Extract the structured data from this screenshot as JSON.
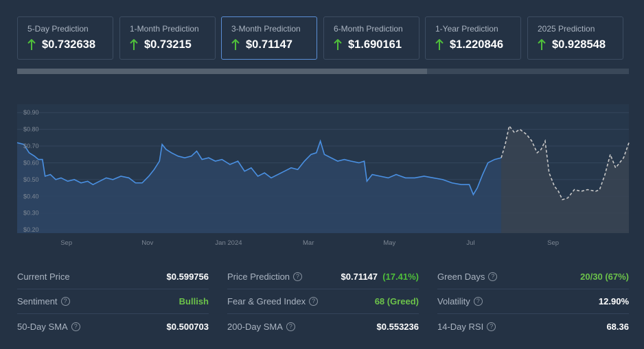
{
  "predictions": [
    {
      "label": "5-Day Prediction",
      "value": "$0.732638",
      "active": false
    },
    {
      "label": "1-Month Prediction",
      "value": "$0.73215",
      "active": false
    },
    {
      "label": "3-Month Prediction",
      "value": "$0.71147",
      "active": true
    },
    {
      "label": "6-Month Prediction",
      "value": "$1.690161",
      "active": false
    },
    {
      "label": "1-Year Prediction",
      "value": "$1.220846",
      "active": false
    },
    {
      "label": "2025 Prediction",
      "value": "$0.928548",
      "active": false
    }
  ],
  "range_slider": {
    "fill_fraction": 0.67
  },
  "colors": {
    "background": "#243244",
    "price_line": "#4a90e2",
    "price_fill": "#2e4564",
    "prediction_line": "#c8c8c8",
    "prediction_fill": "#3a4452",
    "up_arrow": "#4fbf3a",
    "positive": "#6cc24a"
  },
  "chart_data": {
    "type": "line",
    "y_ticks": [
      "$0.90",
      "$0.80",
      "$0.70",
      "$0.60",
      "$0.50",
      "$0.40",
      "$0.30",
      "$0.20"
    ],
    "ylim": [
      0.18,
      0.95
    ],
    "x_ticks": [
      {
        "label": "Sep",
        "date": "2023-09-01"
      },
      {
        "label": "Nov",
        "date": "2023-11-01"
      },
      {
        "label": "Jan 2024",
        "date": "2024-01-01"
      },
      {
        "label": "Mar",
        "date": "2024-03-01"
      },
      {
        "label": "May",
        "date": "2024-05-01"
      },
      {
        "label": "Jul",
        "date": "2024-07-01"
      },
      {
        "label": "Sep",
        "date": "2024-09-01"
      }
    ],
    "xlim": [
      "2023-07-26",
      "2024-10-28"
    ],
    "grid": true,
    "series": [
      {
        "role": "historical",
        "points": [
          [
            "2023-07-26",
            0.72
          ],
          [
            "2023-07-31",
            0.71
          ],
          [
            "2023-08-04",
            0.66
          ],
          [
            "2023-08-08",
            0.64
          ],
          [
            "2023-08-11",
            0.62
          ],
          [
            "2023-08-14",
            0.62
          ],
          [
            "2023-08-16",
            0.52
          ],
          [
            "2023-08-20",
            0.53
          ],
          [
            "2023-08-24",
            0.5
          ],
          [
            "2023-08-28",
            0.51
          ],
          [
            "2023-09-02",
            0.49
          ],
          [
            "2023-09-07",
            0.5
          ],
          [
            "2023-09-12",
            0.48
          ],
          [
            "2023-09-17",
            0.49
          ],
          [
            "2023-09-21",
            0.47
          ],
          [
            "2023-09-26",
            0.49
          ],
          [
            "2023-10-01",
            0.51
          ],
          [
            "2023-10-06",
            0.5
          ],
          [
            "2023-10-12",
            0.52
          ],
          [
            "2023-10-18",
            0.51
          ],
          [
            "2023-10-23",
            0.48
          ],
          [
            "2023-10-28",
            0.48
          ],
          [
            "2023-11-02",
            0.52
          ],
          [
            "2023-11-06",
            0.56
          ],
          [
            "2023-11-10",
            0.61
          ],
          [
            "2023-11-12",
            0.71
          ],
          [
            "2023-11-15",
            0.68
          ],
          [
            "2023-11-19",
            0.66
          ],
          [
            "2023-11-24",
            0.64
          ],
          [
            "2023-11-29",
            0.63
          ],
          [
            "2023-12-04",
            0.64
          ],
          [
            "2023-12-08",
            0.67
          ],
          [
            "2023-12-12",
            0.62
          ],
          [
            "2023-12-17",
            0.63
          ],
          [
            "2023-12-22",
            0.61
          ],
          [
            "2023-12-27",
            0.62
          ],
          [
            "2024-01-02",
            0.59
          ],
          [
            "2024-01-08",
            0.61
          ],
          [
            "2024-01-13",
            0.55
          ],
          [
            "2024-01-18",
            0.57
          ],
          [
            "2024-01-23",
            0.52
          ],
          [
            "2024-01-28",
            0.54
          ],
          [
            "2024-02-02",
            0.51
          ],
          [
            "2024-02-07",
            0.53
          ],
          [
            "2024-02-12",
            0.55
          ],
          [
            "2024-02-17",
            0.57
          ],
          [
            "2024-02-22",
            0.56
          ],
          [
            "2024-02-27",
            0.61
          ],
          [
            "2024-03-03",
            0.65
          ],
          [
            "2024-03-07",
            0.66
          ],
          [
            "2024-03-10",
            0.73
          ],
          [
            "2024-03-13",
            0.65
          ],
          [
            "2024-03-18",
            0.63
          ],
          [
            "2024-03-23",
            0.61
          ],
          [
            "2024-03-28",
            0.62
          ],
          [
            "2024-04-02",
            0.61
          ],
          [
            "2024-04-08",
            0.6
          ],
          [
            "2024-04-12",
            0.61
          ],
          [
            "2024-04-14",
            0.49
          ],
          [
            "2024-04-18",
            0.53
          ],
          [
            "2024-04-24",
            0.52
          ],
          [
            "2024-04-30",
            0.51
          ],
          [
            "2024-05-06",
            0.53
          ],
          [
            "2024-05-13",
            0.51
          ],
          [
            "2024-05-20",
            0.51
          ],
          [
            "2024-05-27",
            0.52
          ],
          [
            "2024-06-03",
            0.51
          ],
          [
            "2024-06-10",
            0.5
          ],
          [
            "2024-06-17",
            0.48
          ],
          [
            "2024-06-24",
            0.47
          ],
          [
            "2024-06-30",
            0.47
          ],
          [
            "2024-07-03",
            0.41
          ],
          [
            "2024-07-06",
            0.45
          ],
          [
            "2024-07-10",
            0.53
          ],
          [
            "2024-07-14",
            0.6
          ],
          [
            "2024-07-19",
            0.62
          ],
          [
            "2024-07-24",
            0.63
          ]
        ]
      },
      {
        "role": "prediction",
        "points": [
          [
            "2024-07-24",
            0.63
          ],
          [
            "2024-07-27",
            0.71
          ],
          [
            "2024-07-30",
            0.82
          ],
          [
            "2024-08-03",
            0.78
          ],
          [
            "2024-08-07",
            0.8
          ],
          [
            "2024-08-12",
            0.77
          ],
          [
            "2024-08-16",
            0.73
          ],
          [
            "2024-08-20",
            0.66
          ],
          [
            "2024-08-23",
            0.68
          ],
          [
            "2024-08-26",
            0.73
          ],
          [
            "2024-08-29",
            0.54
          ],
          [
            "2024-09-02",
            0.46
          ],
          [
            "2024-09-05",
            0.43
          ],
          [
            "2024-09-08",
            0.38
          ],
          [
            "2024-09-12",
            0.39
          ],
          [
            "2024-09-17",
            0.44
          ],
          [
            "2024-09-22",
            0.43
          ],
          [
            "2024-09-27",
            0.44
          ],
          [
            "2024-10-03",
            0.43
          ],
          [
            "2024-10-06",
            0.44
          ],
          [
            "2024-10-10",
            0.53
          ],
          [
            "2024-10-14",
            0.65
          ],
          [
            "2024-10-18",
            0.57
          ],
          [
            "2024-10-24",
            0.63
          ],
          [
            "2024-10-28",
            0.72
          ]
        ]
      }
    ]
  },
  "stats": [
    [
      {
        "label": "Current Price",
        "value": "$0.599756",
        "help": false
      },
      {
        "label": "Sentiment",
        "value": "Bullish",
        "help": true,
        "green": true
      },
      {
        "label": "50-Day SMA",
        "value": "$0.500703",
        "help": true
      }
    ],
    [
      {
        "label": "Price Prediction",
        "value": "$0.71147",
        "pct": "(17.41%)",
        "help": true
      },
      {
        "label": "Fear & Greed Index",
        "value": "68 (Greed)",
        "help": true,
        "green": true
      },
      {
        "label": "200-Day SMA",
        "value": "$0.553236",
        "help": true
      }
    ],
    [
      {
        "label": "Green Days",
        "value": "20/30 (67%)",
        "help": true,
        "green": true
      },
      {
        "label": "Volatility",
        "value": "12.90%",
        "help": true
      },
      {
        "label": "14-Day RSI",
        "value": "68.36",
        "help": true
      }
    ]
  ]
}
